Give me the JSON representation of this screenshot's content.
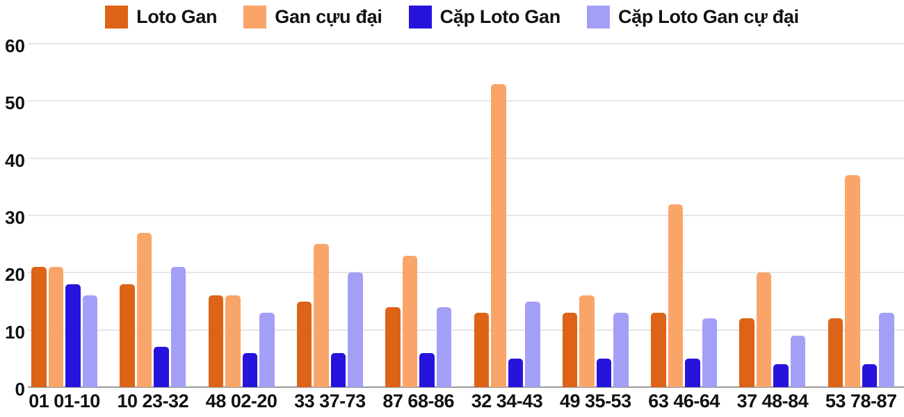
{
  "chart_data": {
    "type": "bar",
    "title": "",
    "categories": [
      "01 01-10",
      "10 23-32",
      "48 02-20",
      "33 37-73",
      "87 68-86",
      "32 34-43",
      "49 35-53",
      "63 46-64",
      "37 48-84",
      "53 78-87"
    ],
    "series": [
      {
        "name": "Loto Gan",
        "color": "#dd6317",
        "values": [
          21,
          18,
          16,
          15,
          14,
          13,
          13,
          13,
          12,
          12
        ]
      },
      {
        "name": "Gan cựu đại",
        "color": "#f9a569",
        "values": [
          21,
          27,
          16,
          25,
          23,
          53,
          16,
          32,
          20,
          37
        ]
      },
      {
        "name": "Cặp Loto Gan",
        "color": "#2614dc",
        "values": [
          18,
          7,
          6,
          6,
          6,
          5,
          5,
          5,
          4,
          4
        ]
      },
      {
        "name": "Cặp Loto Gan cự đại",
        "color": "#a49ff6",
        "values": [
          16,
          21,
          13,
          20,
          14,
          15,
          13,
          12,
          9,
          13
        ]
      }
    ],
    "y_axis": {
      "min": 0,
      "max": 60,
      "ticks": [
        0,
        10,
        20,
        30,
        40,
        50,
        60
      ]
    },
    "legend_position": "top",
    "grid": true,
    "colors": {
      "gridline": "#e6e6e6",
      "axis_line": "#9a9a9a",
      "text": "#111111",
      "background": "#ffffff"
    }
  }
}
